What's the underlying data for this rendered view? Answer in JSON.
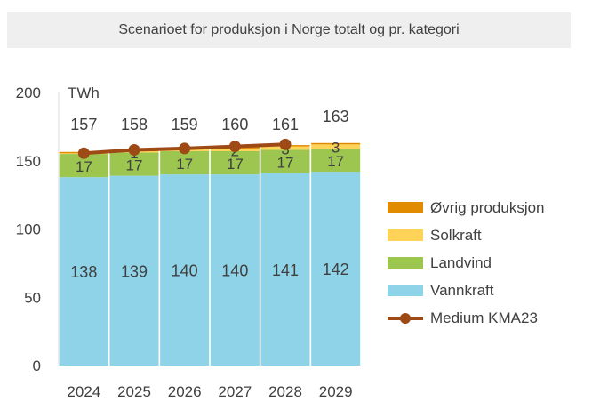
{
  "chart_data": {
    "type": "bar",
    "stacked": true,
    "title": "Scenarioet for produksjon i Norge totalt og pr. kategori",
    "ylabel": "TWh",
    "ylim": [
      0,
      200
    ],
    "yticks": [
      0,
      50,
      100,
      150,
      200
    ],
    "grid": false,
    "legend_position": "right",
    "categories": [
      "2024",
      "2025",
      "2026",
      "2027",
      "2028",
      "2029"
    ],
    "series": [
      {
        "name": "Vannkraft",
        "color": "#8fd3e9",
        "values": [
          138,
          139,
          140,
          140,
          141,
          142
        ],
        "labels": [
          "138",
          "139",
          "140",
          "140",
          "141",
          "142"
        ]
      },
      {
        "name": "Landvind",
        "color": "#9cc64f",
        "values": [
          17,
          17,
          17,
          17,
          17,
          17
        ],
        "labels": [
          "17",
          "17",
          "17",
          "17",
          "17",
          "17"
        ]
      },
      {
        "name": "Solkraft",
        "color": "#ffd357",
        "values": [
          0.5,
          1,
          1.5,
          2,
          2.5,
          3
        ],
        "labels": [
          "",
          "1",
          "",
          "2",
          "3",
          "3"
        ]
      },
      {
        "name": "Øvrig produksjon",
        "color": "#e08b00",
        "values": [
          1,
          1,
          1,
          1,
          1,
          1
        ],
        "labels": [
          "",
          "",
          "",
          "",
          "",
          ""
        ]
      }
    ],
    "totals": [
      "157",
      "158",
      "159",
      "160",
      "161",
      "163"
    ],
    "line_series": {
      "name": "Medium KMA23",
      "color": "#9e4a16",
      "values": [
        155.5,
        158,
        159,
        160.5,
        162
      ]
    }
  }
}
